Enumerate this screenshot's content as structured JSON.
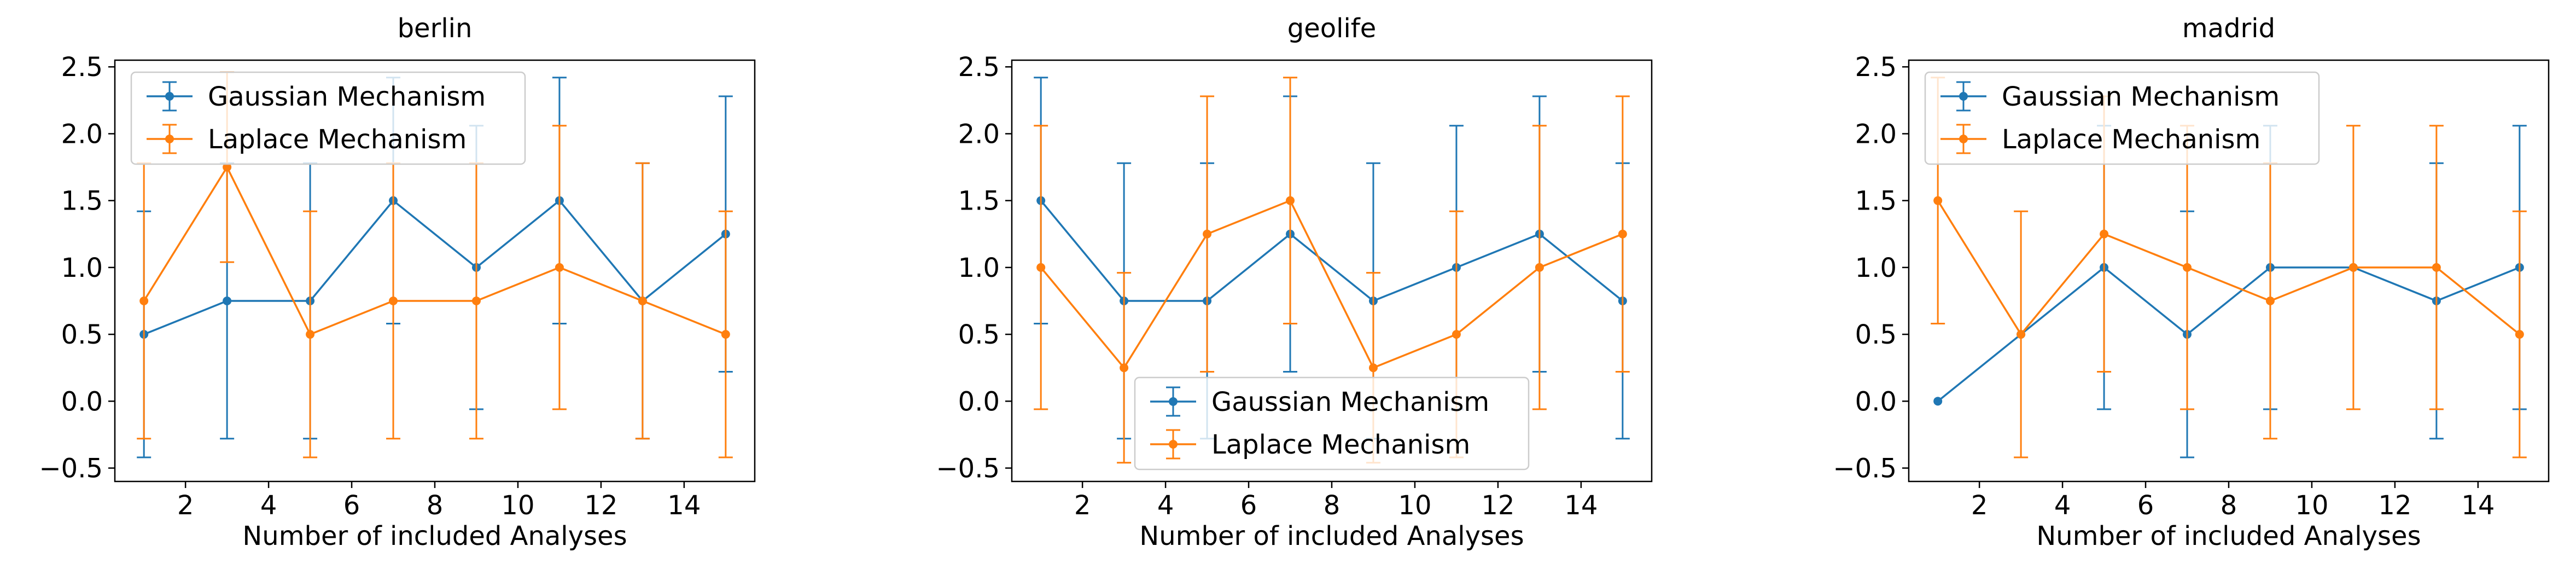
{
  "figure": {
    "panels": [
      {
        "title": "berlin",
        "xlabel": "Number of included Analyses",
        "legend_position": "upper-left"
      },
      {
        "title": "geolife",
        "xlabel": "Number of included Analyses",
        "legend_position": "lower-center"
      },
      {
        "title": "madrid",
        "xlabel": "Number of included Analyses",
        "legend_position": "upper-left"
      }
    ]
  },
  "chart_data": [
    {
      "type": "line",
      "title": "berlin",
      "xlabel": "Number of included Analyses",
      "ylabel": "",
      "xlim": [
        0.3,
        15.7
      ],
      "ylim": [
        -0.6,
        2.55
      ],
      "xticks": [
        2,
        4,
        6,
        8,
        10,
        12,
        14
      ],
      "yticks": [
        -0.5,
        0.0,
        0.5,
        1.0,
        1.5,
        2.0,
        2.5
      ],
      "grid": false,
      "legend": "upper-left",
      "x": [
        1,
        3,
        5,
        7,
        9,
        11,
        13,
        15
      ],
      "series": [
        {
          "name": "Gaussian Mechanism",
          "color": "#1f77b4",
          "values": [
            0.5,
            0.75,
            0.75,
            1.5,
            1.0,
            1.5,
            0.75,
            1.25
          ],
          "yerr": [
            0.92,
            1.03,
            1.03,
            0.92,
            1.06,
            0.92,
            1.03,
            1.03
          ]
        },
        {
          "name": "Laplace Mechanism",
          "color": "#ff7f0e",
          "values": [
            0.75,
            1.75,
            0.5,
            0.75,
            0.75,
            1.0,
            0.75,
            0.5
          ],
          "yerr": [
            1.03,
            0.71,
            0.92,
            1.03,
            1.03,
            1.06,
            1.03,
            0.92
          ]
        }
      ]
    },
    {
      "type": "line",
      "title": "geolife",
      "xlabel": "Number of included Analyses",
      "ylabel": "",
      "xlim": [
        0.3,
        15.7
      ],
      "ylim": [
        -0.6,
        2.55
      ],
      "xticks": [
        2,
        4,
        6,
        8,
        10,
        12,
        14
      ],
      "yticks": [
        -0.5,
        0.0,
        0.5,
        1.0,
        1.5,
        2.0,
        2.5
      ],
      "grid": false,
      "legend": "lower-center",
      "x": [
        1,
        3,
        5,
        7,
        9,
        11,
        13,
        15
      ],
      "series": [
        {
          "name": "Gaussian Mechanism",
          "color": "#1f77b4",
          "values": [
            1.5,
            0.75,
            0.75,
            1.25,
            0.75,
            1.0,
            1.25,
            0.75
          ],
          "yerr": [
            0.92,
            1.03,
            1.03,
            1.03,
            1.03,
            1.06,
            1.03,
            1.03
          ]
        },
        {
          "name": "Laplace Mechanism",
          "color": "#ff7f0e",
          "values": [
            1.0,
            0.25,
            1.25,
            1.5,
            0.25,
            0.5,
            1.0,
            1.25
          ],
          "yerr": [
            1.06,
            0.71,
            1.03,
            0.92,
            0.71,
            0.92,
            1.06,
            1.03
          ]
        }
      ]
    },
    {
      "type": "line",
      "title": "madrid",
      "xlabel": "Number of included Analyses",
      "ylabel": "",
      "xlim": [
        0.3,
        15.7
      ],
      "ylim": [
        -0.6,
        2.55
      ],
      "xticks": [
        2,
        4,
        6,
        8,
        10,
        12,
        14
      ],
      "yticks": [
        -0.5,
        0.0,
        0.5,
        1.0,
        1.5,
        2.0,
        2.5
      ],
      "grid": false,
      "legend": "upper-left",
      "x": [
        1,
        3,
        5,
        7,
        9,
        11,
        13,
        15
      ],
      "series": [
        {
          "name": "Gaussian Mechanism",
          "color": "#1f77b4",
          "values": [
            0.0,
            0.5,
            1.0,
            0.5,
            1.0,
            1.0,
            0.75,
            1.0
          ],
          "yerr": [
            0.0,
            0.0,
            1.06,
            0.92,
            1.06,
            0.0,
            1.03,
            1.06
          ]
        },
        {
          "name": "Laplace Mechanism",
          "color": "#ff7f0e",
          "values": [
            1.5,
            0.5,
            1.25,
            1.0,
            0.75,
            1.0,
            1.0,
            0.5
          ],
          "yerr": [
            0.92,
            0.92,
            1.03,
            1.06,
            1.03,
            1.06,
            1.06,
            0.92
          ]
        }
      ]
    }
  ]
}
